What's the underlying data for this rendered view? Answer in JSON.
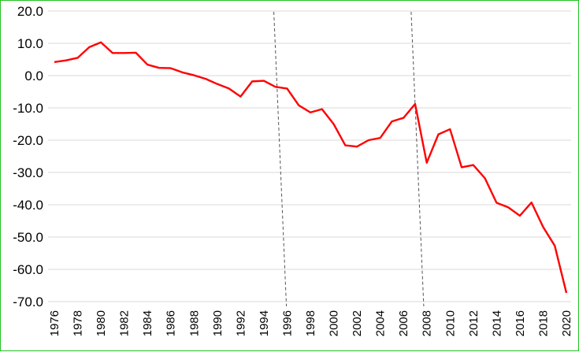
{
  "chart_data": {
    "type": "line",
    "title": "",
    "xlabel": "",
    "ylabel": "",
    "ylim": [
      -70,
      20
    ],
    "yticks": [
      20,
      10,
      0,
      -10,
      -20,
      -30,
      -40,
      -50,
      -60,
      -70
    ],
    "ytick_labels": [
      "20.0",
      "10.0",
      "0.0",
      "-10.0",
      "-20.0",
      "-30.0",
      "-40.0",
      "-50.0",
      "-60.0",
      "-70.0"
    ],
    "xlim": [
      1976,
      2020
    ],
    "xtick_labels": [
      "1976",
      "1978",
      "1980",
      "1982",
      "1984",
      "1986",
      "1988",
      "1990",
      "1992",
      "1994",
      "1996",
      "1998",
      "2000",
      "2002",
      "2004",
      "2006",
      "2008",
      "2010",
      "2012",
      "2014",
      "2016",
      "2018",
      "2020"
    ],
    "grid": true,
    "legend": "none",
    "line_color": "#ff0000",
    "grid_color": "#d9d9d9",
    "frame_color": "#22c222",
    "reference_lines_x": [
      1995.4,
      2007.2
    ],
    "series": [
      {
        "x": [
          1976,
          1977,
          1978,
          1979,
          1980,
          1981,
          1982,
          1983,
          1984,
          1985,
          1986,
          1987,
          1988,
          1989,
          1990,
          1991,
          1992,
          1993,
          1994,
          1995,
          1996,
          1997,
          1998,
          1999,
          2000,
          2001,
          2002,
          2003,
          2004,
          2005,
          2006,
          2007,
          2008,
          2009,
          2010,
          2011,
          2012,
          2013,
          2014,
          2015,
          2016,
          2017,
          2018,
          2019,
          2020
        ],
        "values": [
          4.2,
          4.7,
          5.5,
          8.8,
          10.3,
          7.0,
          7.0,
          7.1,
          3.4,
          2.4,
          2.3,
          1.0,
          0.1,
          -1.0,
          -2.6,
          -4.0,
          -6.5,
          -1.8,
          -1.6,
          -3.5,
          -4.0,
          -9.2,
          -11.4,
          -10.4,
          -15.0,
          -21.6,
          -22.0,
          -20.0,
          -19.3,
          -14.2,
          -13.1,
          -8.8,
          -27.0,
          -18.2,
          -16.6,
          -28.4,
          -27.7,
          -31.8,
          -39.4,
          -40.8,
          -43.4,
          -39.3,
          -46.9,
          -52.7,
          -67.3
        ]
      }
    ]
  }
}
